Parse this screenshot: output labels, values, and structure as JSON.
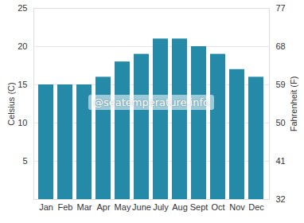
{
  "chart_data": {
    "type": "bar",
    "categories": [
      "Jan",
      "Feb",
      "Mar",
      "Apr",
      "May",
      "June",
      "July",
      "Aug",
      "Sept",
      "Oct",
      "Nov",
      "Dec"
    ],
    "values": [
      15,
      15,
      15,
      16,
      18,
      19,
      21,
      21,
      20,
      19,
      17,
      16
    ],
    "color": "#2589a8",
    "ylabel": "Celsius (C)",
    "ylim": [
      0,
      25
    ],
    "yticks": [
      5,
      10,
      15,
      20,
      25
    ],
    "y2label": "Fahrenheit (F)",
    "y2lim": [
      32,
      77
    ],
    "y2ticks": [
      32,
      41,
      50,
      59,
      68,
      77
    ],
    "grid": true,
    "annotations": [
      "@seatemperature.info"
    ]
  }
}
